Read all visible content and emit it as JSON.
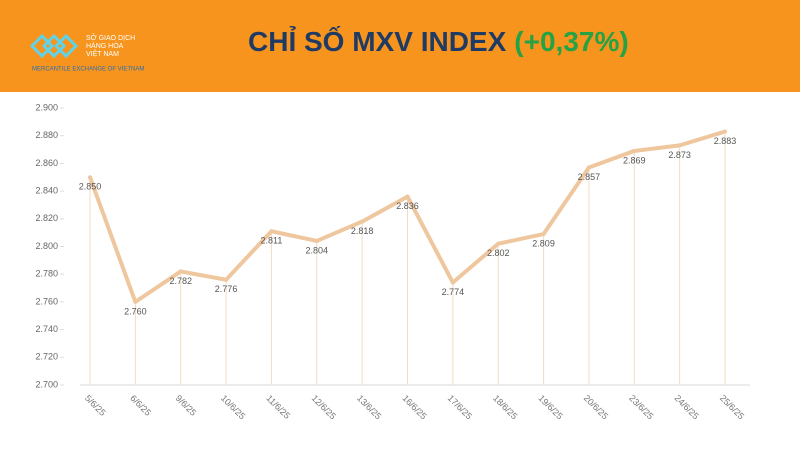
{
  "header": {
    "logo_lines": [
      "SỞ GIAO DỊCH",
      "HÀNG HÓA",
      "VIỆT NAM"
    ],
    "logo_tagline": "MERCANTILE EXCHANGE OF VIETNAM"
  },
  "chart_data": {
    "type": "line",
    "title": "CHỈ SỐ MXV INDEX",
    "change": "(+0,37%)",
    "categories": [
      "5/6/25",
      "6/6/25",
      "9/6/25",
      "10/6/25",
      "11/6/25",
      "12/6/25",
      "13/6/25",
      "16/6/25",
      "17/6/25",
      "18/6/25",
      "19/6/25",
      "20/6/25",
      "23/6/25",
      "24/6/25",
      "25/6/25"
    ],
    "values": [
      2850,
      2760,
      2782,
      2776,
      2811,
      2804,
      2818,
      2836,
      2774,
      2802,
      2809,
      2857,
      2869,
      2873,
      2883
    ],
    "value_labels": [
      "2.850",
      "2.760",
      "2.782",
      "2.776",
      "2.811",
      "2.804",
      "2.818",
      "2.836",
      "2.774",
      "2.802",
      "2.809",
      "2.857",
      "2.869",
      "2.873",
      "2.883"
    ],
    "color": "#efc79e",
    "ylim": [
      2700,
      2900
    ],
    "yticks": [
      {
        "value": 2700,
        "label": "2.700"
      },
      {
        "value": 2720,
        "label": "2.720"
      },
      {
        "value": 2740,
        "label": "2.740"
      },
      {
        "value": 2760,
        "label": "2.760"
      },
      {
        "value": 2780,
        "label": "2.780"
      },
      {
        "value": 2800,
        "label": "2.800"
      },
      {
        "value": 2820,
        "label": "2.820"
      },
      {
        "value": 2840,
        "label": "2.840"
      },
      {
        "value": 2860,
        "label": "2.860"
      },
      {
        "value": 2880,
        "label": "2.880"
      },
      {
        "value": 2900,
        "label": "2.900"
      }
    ]
  }
}
